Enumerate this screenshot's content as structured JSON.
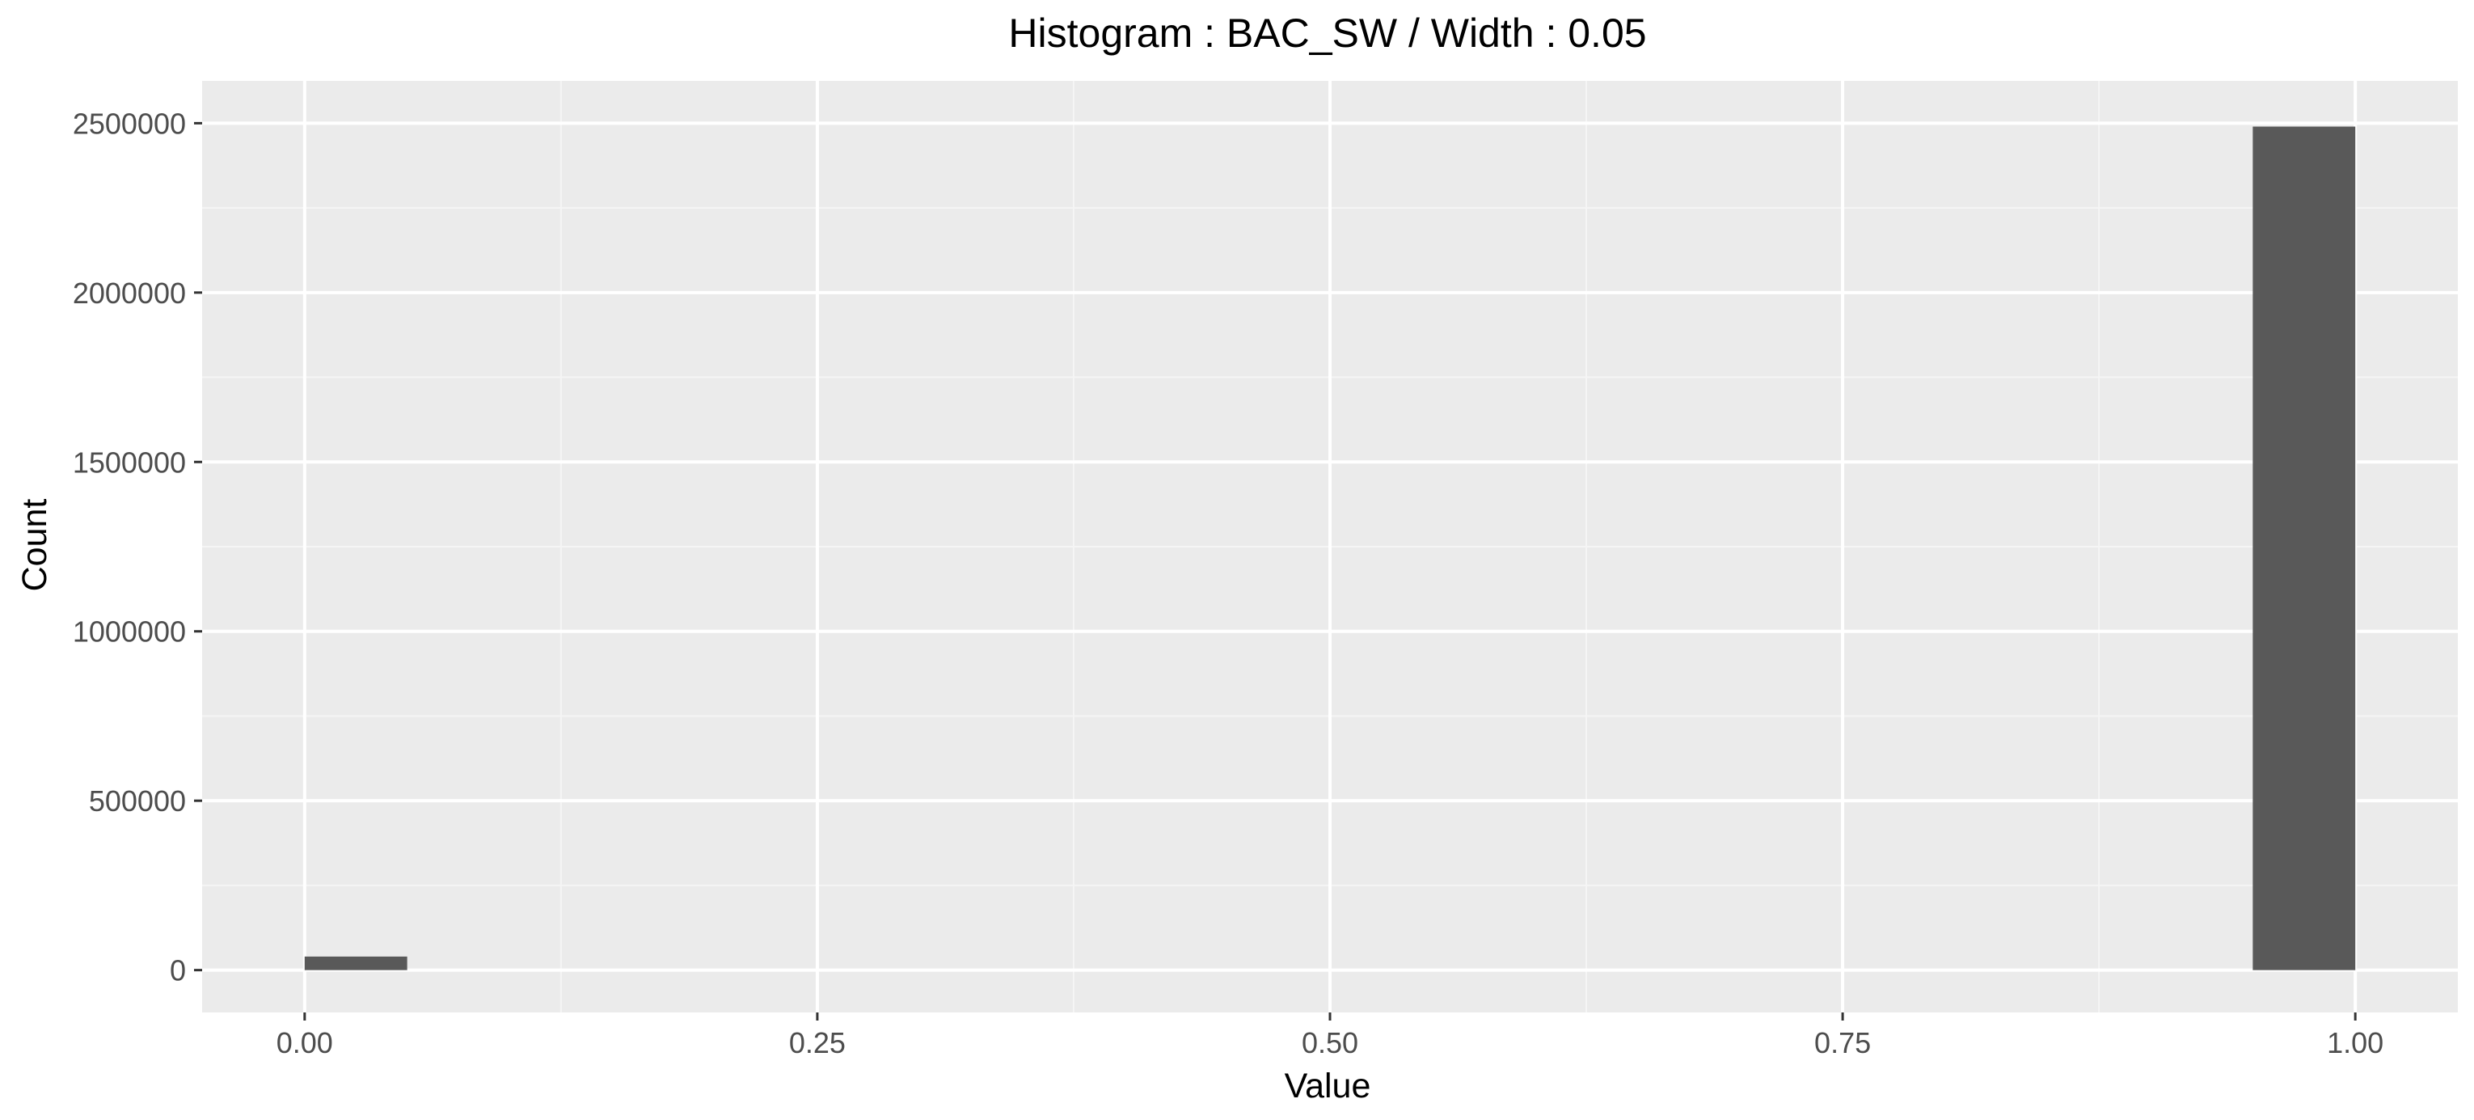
{
  "chart_data": {
    "type": "bar",
    "title": "Histogram : BAC_SW / Width : 0.05",
    "xlabel": "Value",
    "ylabel": "Count",
    "bin_width": 0.05,
    "xlim": [
      -0.05,
      1.05
    ],
    "ylim": [
      -125000,
      2625000
    ],
    "x_ticks": [
      0.0,
      0.25,
      0.5,
      0.75,
      1.0
    ],
    "x_tick_labels": [
      "0.00",
      "0.25",
      "0.50",
      "0.75",
      "1.00"
    ],
    "x_minor_ticks": [
      0.125,
      0.375,
      0.625,
      0.875
    ],
    "y_ticks": [
      0,
      500000,
      1000000,
      1500000,
      2000000,
      2500000
    ],
    "y_tick_labels": [
      "0",
      "500000",
      "1000000",
      "1500000",
      "2000000",
      "2500000"
    ],
    "y_minor_ticks": [
      250000,
      750000,
      1250000,
      1750000,
      2250000
    ],
    "grid": true,
    "bins": [
      {
        "x_start": 0.0,
        "x_end": 0.05,
        "count": 40000
      },
      {
        "x_start": 0.95,
        "x_end": 1.0,
        "count": 2490000
      }
    ],
    "colors": {
      "panel_background": "#ebebeb",
      "grid_major": "#ffffff",
      "grid_minor": "#f5f5f5",
      "bar_fill": "#595959",
      "axis_text": "#4d4d4d",
      "title_text": "#000000"
    }
  }
}
